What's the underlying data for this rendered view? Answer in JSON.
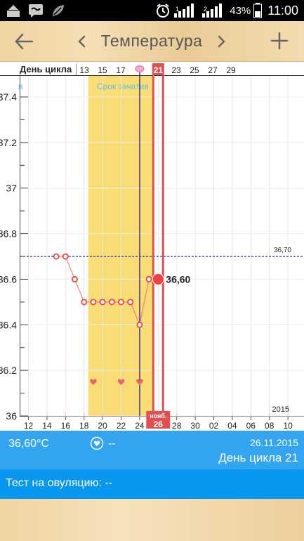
{
  "status_bar": {
    "battery_percent": "43%",
    "time": "11:00",
    "sim1": "1",
    "sim2": "2"
  },
  "toolbar": {
    "title": "Температура"
  },
  "chart": {
    "cycle_day_label": "День цикла",
    "top_days": [
      "13",
      "15",
      "17",
      "21",
      "23",
      "25",
      "27",
      "29"
    ],
    "highlight_day": "21",
    "conception_label": "Срок зачатия",
    "left_edge_fragment": "я",
    "y_ticks": [
      "37.4",
      "37.2",
      "37",
      "36.8",
      "36.6",
      "36.4",
      "36.2",
      "36"
    ],
    "x_ticks": [
      "12",
      "14",
      "16",
      "18",
      "20",
      "22",
      "24",
      "26",
      "28",
      "30",
      "02",
      "04",
      "06",
      "08",
      "10"
    ],
    "coverline_value": "36,70",
    "current_value_label": "36,60",
    "year": "2015",
    "current_month": "нояб.",
    "current_date": "26"
  },
  "chart_data": {
    "type": "line",
    "series": [
      {
        "x": [
          "15.11",
          "16.11",
          "17.11",
          "18.11",
          "19.11",
          "20.11",
          "21.11",
          "22.11",
          "23.11",
          "24.11",
          "25.11",
          "26.11"
        ],
        "values": [
          36.7,
          36.7,
          36.6,
          36.5,
          36.5,
          36.5,
          36.5,
          36.5,
          36.5,
          36.4,
          36.6,
          36.6
        ]
      }
    ],
    "ylim": [
      36.0,
      37.5
    ],
    "coverline": 36.7,
    "fertile_window": [
      "19.11",
      "25.11"
    ],
    "ovulation_day": "24.11",
    "heart_markers": [
      "19.11",
      "22.11",
      "24.11"
    ],
    "colors": {
      "line": "#f08080",
      "point": "#f04040",
      "fertile": "#f9dc73",
      "ovulation_line": "#3a3a8c",
      "current_day": "#e05050",
      "coverline": "#2a2aa0"
    }
  },
  "info": {
    "temperature": "36,60°C",
    "intimacy": "--",
    "date": "26.11.2015",
    "cycle_day": "День цикла 21"
  },
  "test": {
    "label": "Тест на овуляцию: --"
  }
}
